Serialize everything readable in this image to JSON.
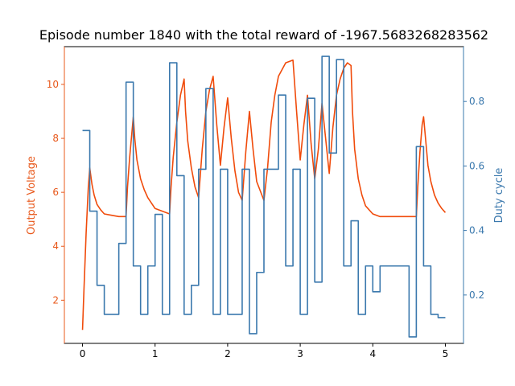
{
  "chart_data": {
    "type": "line",
    "title": "Episode number 1840 with the total reward of -1967.5683268283562",
    "xlim": [
      -0.25,
      5.25
    ],
    "x_ticks": [
      {
        "value": 0,
        "label": "0"
      },
      {
        "value": 1,
        "label": "1"
      },
      {
        "value": 2,
        "label": "2"
      },
      {
        "value": 3,
        "label": "3"
      },
      {
        "value": 4,
        "label": "4"
      },
      {
        "value": 5,
        "label": "5"
      }
    ],
    "left_axis": {
      "label": "Output Voltage",
      "color": "#e8581b",
      "ylim": [
        0.4,
        11.4
      ],
      "ticks": [
        {
          "value": 2,
          "label": "2"
        },
        {
          "value": 4,
          "label": "4"
        },
        {
          "value": 6,
          "label": "6"
        },
        {
          "value": 8,
          "label": "8"
        },
        {
          "value": 10,
          "label": "10"
        }
      ]
    },
    "right_axis": {
      "label": "Duty cycle",
      "color": "#3a78ad",
      "ylim": [
        0.05,
        0.97
      ],
      "ticks": [
        {
          "value": 0.2,
          "label": "0.2"
        },
        {
          "value": 0.4,
          "label": "0.4"
        },
        {
          "value": 0.6,
          "label": "0.6"
        },
        {
          "value": 0.8,
          "label": "0.8"
        }
      ]
    },
    "series": [
      {
        "axis": "left",
        "color": "#f04b0b",
        "kind": "line",
        "x": [
          0.0,
          0.02,
          0.05,
          0.08,
          0.1,
          0.13,
          0.16,
          0.2,
          0.25,
          0.3,
          0.4,
          0.5,
          0.6,
          0.62,
          0.65,
          0.7,
          0.72,
          0.75,
          0.8,
          0.85,
          0.9,
          0.95,
          1.0,
          1.1,
          1.2,
          1.22,
          1.25,
          1.3,
          1.35,
          1.4,
          1.42,
          1.45,
          1.5,
          1.55,
          1.6,
          1.65,
          1.7,
          1.75,
          1.8,
          1.85,
          1.9,
          1.95,
          2.0,
          2.05,
          2.1,
          2.15,
          2.2,
          2.25,
          2.3,
          2.35,
          2.4,
          2.5,
          2.55,
          2.6,
          2.65,
          2.7,
          2.8,
          2.9,
          2.95,
          3.0,
          3.05,
          3.1,
          3.15,
          3.2,
          3.25,
          3.3,
          3.35,
          3.4,
          3.45,
          3.5,
          3.55,
          3.6,
          3.65,
          3.7,
          3.72,
          3.75,
          3.8,
          3.85,
          3.9,
          4.0,
          4.1,
          4.2,
          4.3,
          4.4,
          4.5,
          4.6,
          4.62,
          4.65,
          4.68,
          4.7,
          4.73,
          4.76,
          4.8,
          4.85,
          4.9,
          4.95,
          5.0
        ],
        "y": [
          0.9,
          2.4,
          4.5,
          6.2,
          6.9,
          6.3,
          5.9,
          5.55,
          5.35,
          5.2,
          5.15,
          5.1,
          5.1,
          6.2,
          7.3,
          8.8,
          8.0,
          7.2,
          6.5,
          6.1,
          5.8,
          5.6,
          5.4,
          5.3,
          5.2,
          6.2,
          7.3,
          8.6,
          9.6,
          10.2,
          9.0,
          7.9,
          6.9,
          6.2,
          5.8,
          7.6,
          9.0,
          9.8,
          10.3,
          8.5,
          7.0,
          8.4,
          9.5,
          8.0,
          6.8,
          6.0,
          5.7,
          7.5,
          9.0,
          7.6,
          6.4,
          5.7,
          6.9,
          8.6,
          9.6,
          10.3,
          10.8,
          10.9,
          9.0,
          7.2,
          8.5,
          9.6,
          7.8,
          6.5,
          7.6,
          9.3,
          8.0,
          6.7,
          8.4,
          9.6,
          10.2,
          10.6,
          10.8,
          10.7,
          9.0,
          7.6,
          6.5,
          5.9,
          5.5,
          5.2,
          5.1,
          5.1,
          5.1,
          5.1,
          5.1,
          5.1,
          6.2,
          7.5,
          8.5,
          8.8,
          7.9,
          7.0,
          6.4,
          5.9,
          5.6,
          5.4,
          5.25
        ]
      },
      {
        "axis": "right",
        "color": "#3a78ad",
        "kind": "step",
        "x": [
          0.0,
          0.1,
          0.2,
          0.3,
          0.4,
          0.5,
          0.6,
          0.7,
          0.8,
          0.9,
          1.0,
          1.1,
          1.2,
          1.3,
          1.4,
          1.5,
          1.6,
          1.7,
          1.8,
          1.9,
          2.0,
          2.1,
          2.2,
          2.3,
          2.4,
          2.5,
          2.6,
          2.7,
          2.8,
          2.9,
          3.0,
          3.1,
          3.2,
          3.3,
          3.4,
          3.5,
          3.6,
          3.7,
          3.8,
          3.9,
          4.0,
          4.1,
          4.2,
          4.3,
          4.4,
          4.5,
          4.6,
          4.7,
          4.8,
          4.9,
          5.0
        ],
        "y": [
          0.71,
          0.46,
          0.23,
          0.14,
          0.14,
          0.36,
          0.86,
          0.29,
          0.14,
          0.29,
          0.45,
          0.14,
          0.92,
          0.57,
          0.14,
          0.23,
          0.59,
          0.84,
          0.14,
          0.59,
          0.14,
          0.14,
          0.59,
          0.08,
          0.27,
          0.59,
          0.59,
          0.82,
          0.29,
          0.59,
          0.14,
          0.81,
          0.24,
          0.94,
          0.64,
          0.93,
          0.29,
          0.43,
          0.14,
          0.29,
          0.21,
          0.29,
          0.29,
          0.29,
          0.29,
          0.07,
          0.66,
          0.29,
          0.14,
          0.13,
          0.13
        ]
      }
    ]
  }
}
